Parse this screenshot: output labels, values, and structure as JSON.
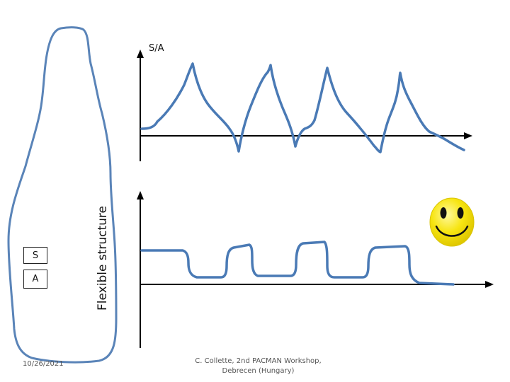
{
  "slide": {
    "axis_label": "S/A",
    "vertical_title": "Flexible structure",
    "box_labels": {
      "top": "S",
      "bottom": "A"
    },
    "date": "10/26/2021",
    "footer_line1": "C. Collette, 2nd PACMAN Workshop,",
    "footer_line2": "Debrecen (Hungary)"
  },
  "colors": {
    "trace": "#4a7ab5",
    "outline": "#5a84b8",
    "axis": "#000000",
    "smiley_face": "#f5e30a",
    "smiley_edge": "#d9c400"
  },
  "icons": {
    "smiley": "smiley-face-icon"
  }
}
